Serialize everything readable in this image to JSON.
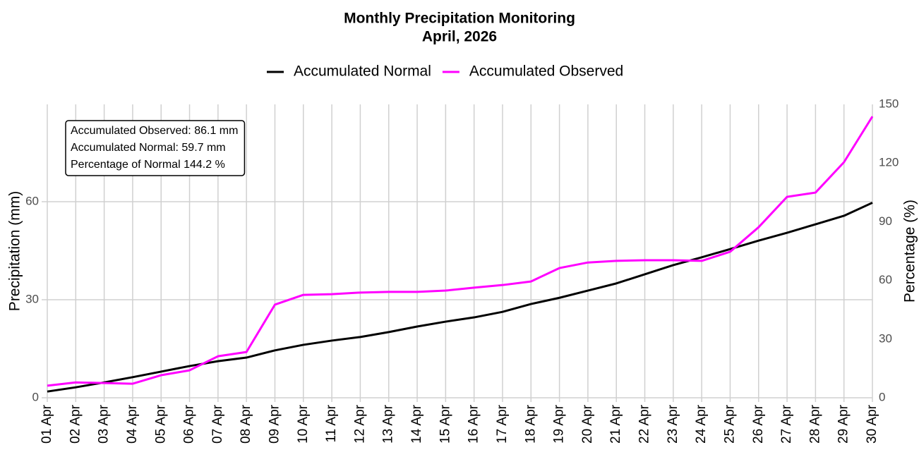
{
  "chart_data": {
    "type": "line",
    "title": "Monthly Precipitation Monitoring",
    "subtitle": "April, 2026",
    "y_label": "Precipitation (mm)",
    "y2_label": "Percentage (%)",
    "annotations": [
      "Accumulated Observed: 86.1 mm",
      "Accumulated Normal: 59.7 mm",
      "Percentage of Normal 144.2 %"
    ],
    "categories": [
      "01 Apr",
      "02 Apr",
      "03 Apr",
      "04 Apr",
      "05 Apr",
      "06 Apr",
      "07 Apr",
      "08 Apr",
      "09 Apr",
      "10 Apr",
      "11 Apr",
      "12 Apr",
      "13 Apr",
      "14 Apr",
      "15 Apr",
      "16 Apr",
      "17 Apr",
      "18 Apr",
      "19 Apr",
      "20 Apr",
      "21 Apr",
      "22 Apr",
      "23 Apr",
      "24 Apr",
      "25 Apr",
      "26 Apr",
      "27 Apr",
      "28 Apr",
      "29 Apr",
      "30 Apr"
    ],
    "series": [
      {
        "name": "Accumulated Normal",
        "color": "#000000",
        "values": [
          1.9,
          3.2,
          4.7,
          6.3,
          8.0,
          9.7,
          11.2,
          12.3,
          14.5,
          16.2,
          17.5,
          18.6,
          20.1,
          21.8,
          23.3,
          24.6,
          26.3,
          28.7,
          30.6,
          32.8,
          35.0,
          37.8,
          40.6,
          43.0,
          45.5,
          48.1,
          50.5,
          53.1,
          55.7,
          59.7
        ]
      },
      {
        "name": "Accumulated Observed",
        "color": "#ff00ff",
        "values": [
          3.7,
          4.7,
          4.5,
          4.3,
          6.9,
          8.4,
          12.7,
          14.0,
          28.5,
          31.5,
          31.7,
          32.2,
          32.4,
          32.4,
          32.8,
          33.7,
          34.5,
          35.6,
          39.7,
          41.4,
          41.9,
          42.1,
          42.1,
          41.9,
          44.7,
          52.2,
          61.5,
          62.8,
          72.1,
          86.1
        ]
      }
    ],
    "ylim": [
      0,
      89.8
    ],
    "yticks": [
      0,
      30,
      60
    ],
    "y2lim": [
      0,
      150
    ],
    "y2ticks": [
      0,
      30,
      60,
      90,
      120,
      150
    ],
    "grid": true,
    "legend": "top"
  }
}
